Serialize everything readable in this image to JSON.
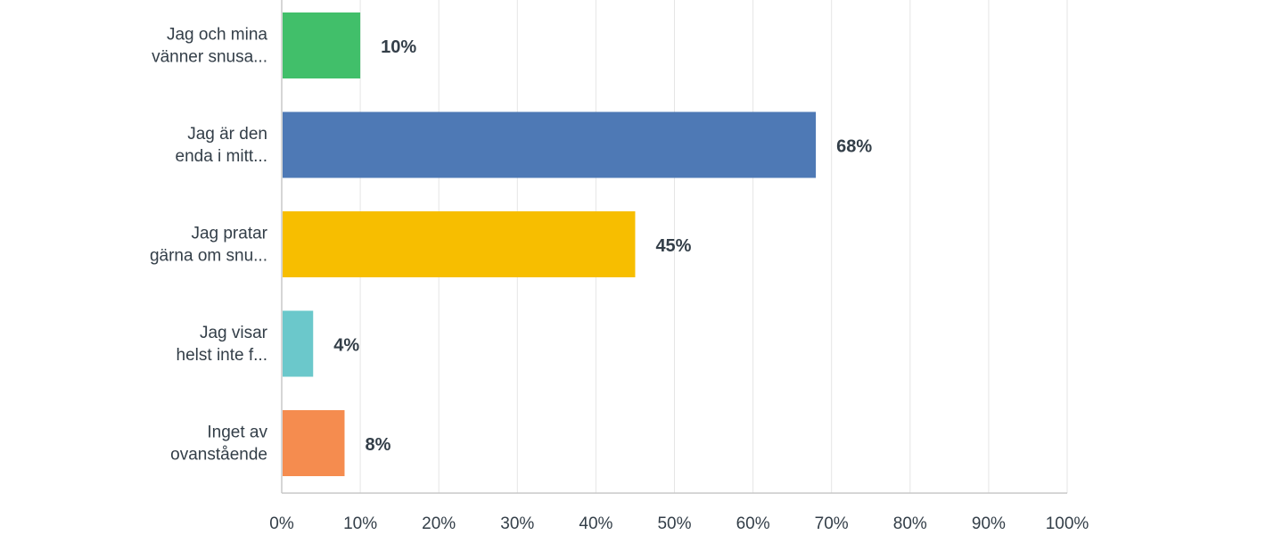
{
  "chart_data": {
    "type": "bar",
    "orientation": "horizontal",
    "categories": [
      [
        "Jag och mina",
        "vänner snusa..."
      ],
      [
        "Jag är den",
        "enda i mitt..."
      ],
      [
        "Jag pratar",
        "gärna om snu..."
      ],
      [
        "Jag visar",
        "helst inte f..."
      ],
      [
        "Inget av",
        "ovanstående"
      ]
    ],
    "values": [
      10,
      68,
      45,
      4,
      8
    ],
    "value_labels": [
      "10%",
      "68%",
      "45%",
      "4%",
      "8%"
    ],
    "colors": [
      "#41bf6a",
      "#4e79b5",
      "#f7be00",
      "#6bc8cb",
      "#f58c4f"
    ],
    "xlim": [
      0,
      100
    ],
    "x_ticks": [
      "0%",
      "10%",
      "20%",
      "30%",
      "40%",
      "50%",
      "60%",
      "70%",
      "80%",
      "90%",
      "100%"
    ],
    "grid": true,
    "title": "",
    "xlabel": "",
    "ylabel": ""
  }
}
